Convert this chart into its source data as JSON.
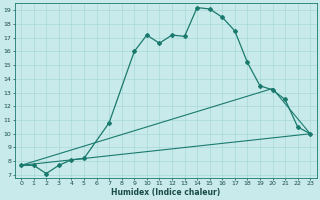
{
  "xlabel": "Humidex (Indice chaleur)",
  "bg_color": "#c8eaea",
  "grid_color": "#a8d8d8",
  "line_color": "#1a7a6e",
  "xlim": [
    -0.5,
    23.5
  ],
  "ylim": [
    6.8,
    19.5
  ],
  "yticks": [
    7,
    8,
    9,
    10,
    11,
    12,
    13,
    14,
    15,
    16,
    17,
    18,
    19
  ],
  "xticks": [
    0,
    1,
    2,
    3,
    4,
    5,
    6,
    7,
    8,
    9,
    10,
    11,
    12,
    13,
    14,
    15,
    16,
    17,
    18,
    19,
    20,
    21,
    22,
    23
  ],
  "series0": {
    "x": [
      0,
      1,
      2,
      3,
      4,
      5,
      7,
      9,
      10,
      11,
      12,
      13,
      14,
      15,
      16,
      17,
      18,
      19,
      20,
      21,
      22,
      23
    ],
    "y": [
      7.7,
      7.7,
      7.1,
      7.7,
      8.1,
      8.2,
      10.8,
      16.0,
      17.2,
      16.6,
      17.2,
      17.1,
      19.2,
      19.1,
      18.5,
      17.5,
      15.2,
      13.5,
      13.2,
      12.5,
      10.5,
      10.0
    ]
  },
  "series1": {
    "x": [
      0,
      23
    ],
    "y": [
      7.7,
      10.0
    ]
  },
  "series2": {
    "x": [
      0,
      20,
      23
    ],
    "y": [
      7.7,
      13.3,
      10.0
    ]
  }
}
